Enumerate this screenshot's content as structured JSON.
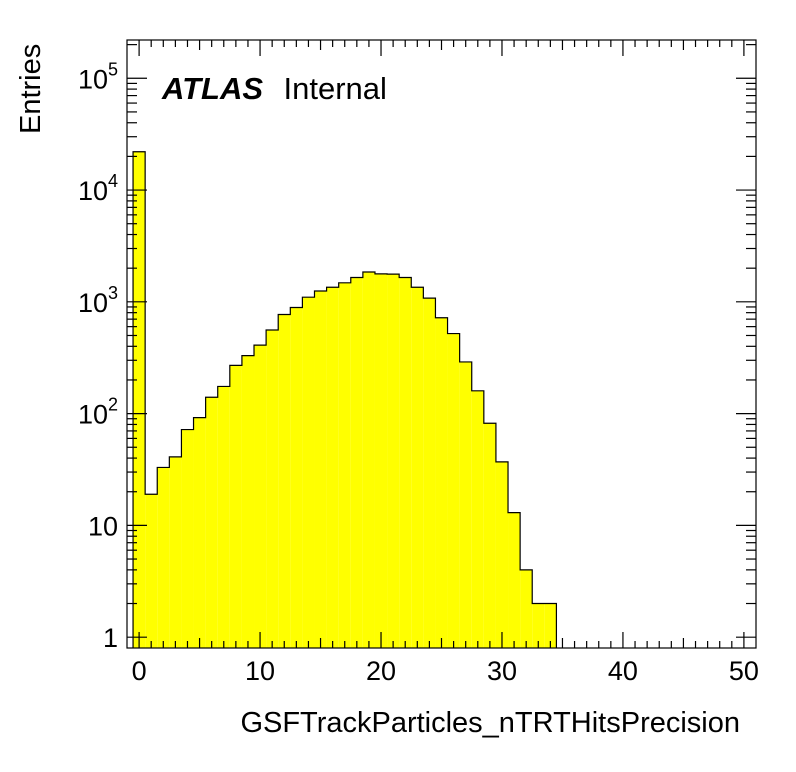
{
  "chart_data": {
    "type": "histogram",
    "xlabel": "GSFTrackParticles_nTRTHitsPrecision",
    "ylabel": "Entries",
    "y_scale": "log",
    "xlim": [
      -1,
      51
    ],
    "ylim": [
      0.8,
      220000
    ],
    "bin_width": 1,
    "x_ticks": [
      {
        "value": 0,
        "label": "0"
      },
      {
        "value": 10,
        "label": "10"
      },
      {
        "value": 20,
        "label": "20"
      },
      {
        "value": 30,
        "label": "30"
      },
      {
        "value": 40,
        "label": "40"
      },
      {
        "value": 50,
        "label": "50"
      }
    ],
    "y_ticks": [
      {
        "value": 1,
        "base": "1",
        "exp": ""
      },
      {
        "value": 10,
        "base": "10",
        "exp": ""
      },
      {
        "value": 100,
        "base": "10",
        "exp": "2"
      },
      {
        "value": 1000,
        "base": "10",
        "exp": "3"
      },
      {
        "value": 10000,
        "base": "10",
        "exp": "4"
      },
      {
        "value": 100000,
        "base": "10",
        "exp": "5"
      }
    ],
    "bins": [
      {
        "x": 0,
        "count": 22000
      },
      {
        "x": 1,
        "count": 19
      },
      {
        "x": 2,
        "count": 33
      },
      {
        "x": 3,
        "count": 41
      },
      {
        "x": 4,
        "count": 72
      },
      {
        "x": 5,
        "count": 92
      },
      {
        "x": 6,
        "count": 140
      },
      {
        "x": 7,
        "count": 175
      },
      {
        "x": 8,
        "count": 270
      },
      {
        "x": 9,
        "count": 330
      },
      {
        "x": 10,
        "count": 410
      },
      {
        "x": 11,
        "count": 560
      },
      {
        "x": 12,
        "count": 770
      },
      {
        "x": 13,
        "count": 890
      },
      {
        "x": 14,
        "count": 1100
      },
      {
        "x": 15,
        "count": 1250
      },
      {
        "x": 16,
        "count": 1350
      },
      {
        "x": 17,
        "count": 1480
      },
      {
        "x": 18,
        "count": 1650
      },
      {
        "x": 19,
        "count": 1850
      },
      {
        "x": 20,
        "count": 1780
      },
      {
        "x": 21,
        "count": 1770
      },
      {
        "x": 22,
        "count": 1650
      },
      {
        "x": 23,
        "count": 1350
      },
      {
        "x": 24,
        "count": 1080
      },
      {
        "x": 25,
        "count": 720
      },
      {
        "x": 26,
        "count": 520
      },
      {
        "x": 27,
        "count": 290
      },
      {
        "x": 28,
        "count": 160
      },
      {
        "x": 29,
        "count": 82
      },
      {
        "x": 30,
        "count": 37
      },
      {
        "x": 31,
        "count": 13
      },
      {
        "x": 32,
        "count": 4
      },
      {
        "x": 33,
        "count": 2
      },
      {
        "x": 34,
        "count": 2
      }
    ],
    "fill_color": "#ffff00",
    "line_color": "#000000",
    "label": {
      "experiment": "ATLAS",
      "status": "Internal"
    }
  }
}
